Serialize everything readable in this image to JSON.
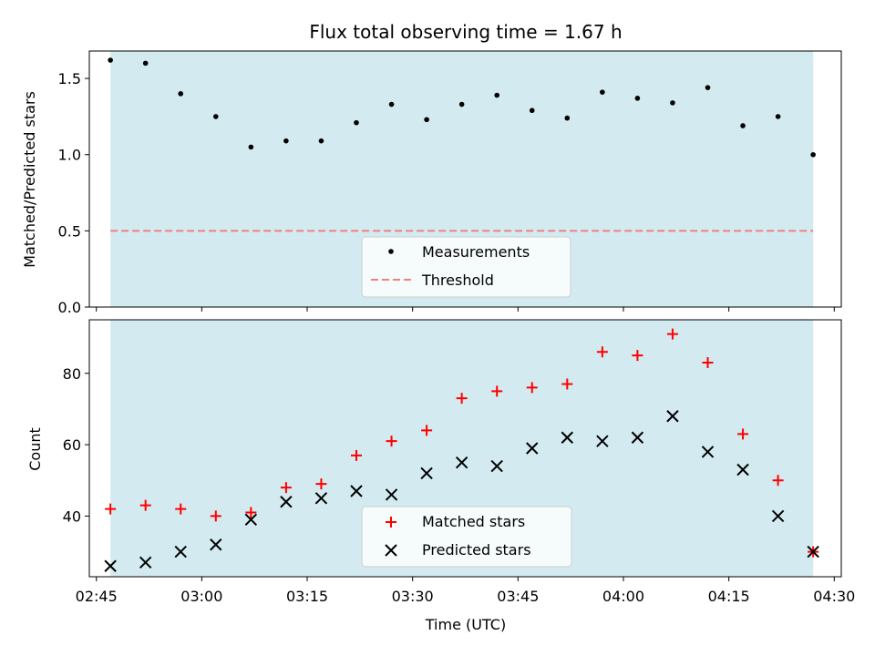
{
  "chart_data": [
    {
      "type": "scatter",
      "title": "Flux total observing time = 1.67 h",
      "xlabel": "",
      "ylabel": "Matched/Predicted stars",
      "ylim": [
        0.0,
        1.68
      ],
      "yticks": [
        "0.0",
        "0.5",
        "1.0",
        "1.5"
      ],
      "shaded_region": {
        "from": "02:47",
        "to": "04:27",
        "color": "#d3ebf0"
      },
      "legend_position": "lower-center",
      "series": [
        {
          "name": "Measurements",
          "marker": "dot",
          "color": "#000000",
          "x": [
            "02:47",
            "02:52",
            "02:57",
            "03:02",
            "03:07",
            "03:12",
            "03:17",
            "03:22",
            "03:27",
            "03:32",
            "03:37",
            "03:42",
            "03:47",
            "03:52",
            "03:57",
            "04:02",
            "04:07",
            "04:12",
            "04:17",
            "04:22",
            "04:27"
          ],
          "y": [
            1.62,
            1.6,
            1.4,
            1.25,
            1.05,
            1.09,
            1.09,
            1.21,
            1.33,
            1.23,
            1.33,
            1.39,
            1.29,
            1.24,
            1.41,
            1.37,
            1.34,
            1.44,
            1.19,
            1.25,
            1.0
          ]
        },
        {
          "name": "Threshold",
          "style": "dashed",
          "color": "#f08080",
          "x": [
            "02:47",
            "04:27"
          ],
          "y": [
            0.5,
            0.5
          ]
        }
      ]
    },
    {
      "type": "scatter",
      "title": "",
      "xlabel": "Time (UTC)",
      "ylabel": "Count",
      "ylim": [
        23,
        95
      ],
      "yticks": [
        "40",
        "60",
        "80"
      ],
      "xlim": [
        "02:44",
        "04:31"
      ],
      "xticks": [
        "02:45",
        "03:00",
        "03:15",
        "03:30",
        "03:45",
        "04:00",
        "04:15",
        "04:30"
      ],
      "shaded_region": {
        "from": "02:47",
        "to": "04:27",
        "color": "#d3ebf0"
      },
      "legend_position": "lower-center",
      "series": [
        {
          "name": "Matched stars",
          "marker": "plus",
          "color": "#ff0000",
          "x": [
            "02:47",
            "02:52",
            "02:57",
            "03:02",
            "03:07",
            "03:12",
            "03:17",
            "03:22",
            "03:27",
            "03:32",
            "03:37",
            "03:42",
            "03:47",
            "03:52",
            "03:57",
            "04:02",
            "04:07",
            "04:12",
            "04:17",
            "04:22",
            "04:27"
          ],
          "y": [
            42,
            43,
            42,
            40,
            41,
            48,
            49,
            57,
            61,
            64,
            73,
            75,
            76,
            77,
            86,
            85,
            91,
            83,
            63,
            50,
            30
          ]
        },
        {
          "name": "Predicted stars",
          "marker": "x",
          "color": "#000000",
          "x": [
            "02:47",
            "02:52",
            "02:57",
            "03:02",
            "03:07",
            "03:12",
            "03:17",
            "03:22",
            "03:27",
            "03:32",
            "03:37",
            "03:42",
            "03:47",
            "03:52",
            "03:57",
            "04:02",
            "04:07",
            "04:12",
            "04:17",
            "04:22",
            "04:27"
          ],
          "y": [
            26,
            27,
            30,
            32,
            39,
            44,
            45,
            47,
            46,
            52,
            55,
            54,
            59,
            62,
            61,
            62,
            68,
            58,
            53,
            40,
            30
          ]
        }
      ]
    }
  ]
}
